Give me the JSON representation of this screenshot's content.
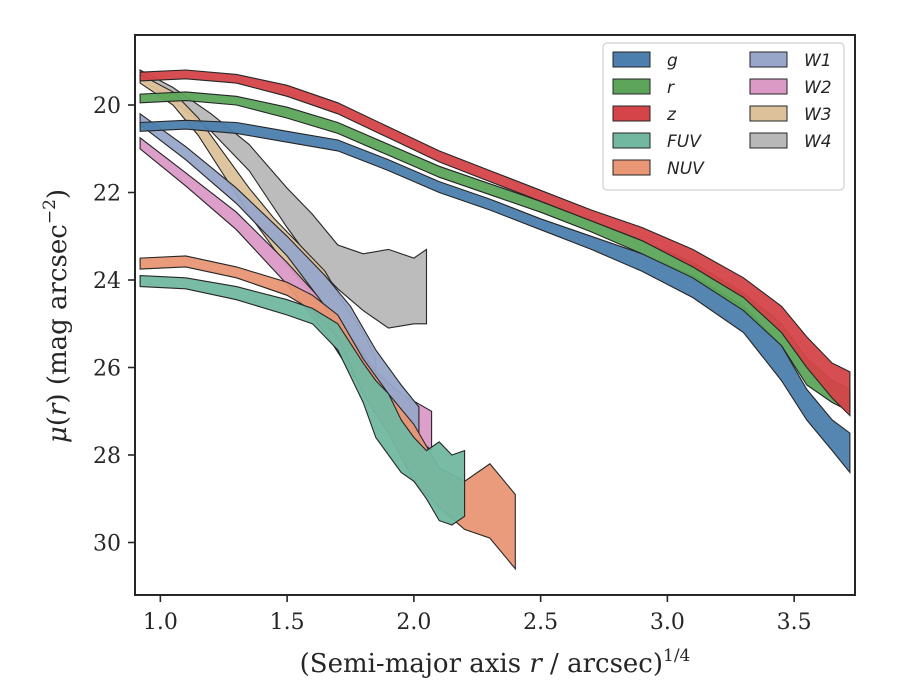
{
  "chart_data": {
    "type": "area",
    "xlabel": "(Semi-major axis r / arcsec)^{1/4}",
    "ylabel": "μ(r) (mag arcsec^{−2})",
    "xlim": [
      0.9,
      3.74
    ],
    "ylim": [
      31.2,
      18.4
    ],
    "y_inverted": true,
    "x_ticks": [
      "1.0",
      "1.5",
      "2.0",
      "2.5",
      "3.0",
      "3.5"
    ],
    "y_ticks": [
      "20",
      "22",
      "24",
      "26",
      "28",
      "30"
    ],
    "grid": false,
    "legend_position": "top-right",
    "legend_columns": 2,
    "series": [
      {
        "name": "g",
        "color": "#4c7fae",
        "x": [
          0.92,
          1.1,
          1.3,
          1.5,
          1.7,
          1.9,
          2.1,
          2.3,
          2.5,
          2.7,
          2.9,
          3.1,
          3.3,
          3.45,
          3.55,
          3.65,
          3.72
        ],
        "lower": [
          20.4,
          20.35,
          20.4,
          20.6,
          20.8,
          21.25,
          21.75,
          22.15,
          22.6,
          23.0,
          23.4,
          23.9,
          24.6,
          25.5,
          26.5,
          27.2,
          27.5
        ],
        "upper": [
          20.6,
          20.55,
          20.65,
          20.85,
          21.05,
          21.5,
          22.0,
          22.4,
          22.85,
          23.3,
          23.8,
          24.4,
          25.2,
          26.3,
          27.2,
          27.9,
          28.4
        ]
      },
      {
        "name": "r",
        "color": "#5ca55a",
        "x": [
          0.92,
          1.1,
          1.3,
          1.5,
          1.7,
          1.9,
          2.1,
          2.3,
          2.5,
          2.7,
          2.9,
          3.1,
          3.3,
          3.45,
          3.55,
          3.65,
          3.72
        ],
        "lower": [
          19.75,
          19.7,
          19.8,
          20.05,
          20.4,
          20.9,
          21.4,
          21.8,
          22.2,
          22.65,
          23.1,
          23.6,
          24.3,
          25.0,
          25.8,
          26.3,
          26.5
        ],
        "upper": [
          19.95,
          19.9,
          20.0,
          20.3,
          20.65,
          21.15,
          21.65,
          22.05,
          22.45,
          22.9,
          23.4,
          23.95,
          24.7,
          25.5,
          26.4,
          26.8,
          27.0
        ]
      },
      {
        "name": "z",
        "color": "#d44448",
        "x": [
          0.92,
          1.1,
          1.3,
          1.5,
          1.7,
          1.9,
          2.1,
          2.3,
          2.5,
          2.7,
          2.9,
          3.1,
          3.3,
          3.45,
          3.55,
          3.65,
          3.72
        ],
        "lower": [
          19.25,
          19.2,
          19.3,
          19.55,
          19.95,
          20.5,
          21.05,
          21.5,
          21.95,
          22.4,
          22.8,
          23.3,
          23.95,
          24.6,
          25.3,
          25.9,
          26.1
        ],
        "upper": [
          19.45,
          19.4,
          19.5,
          19.8,
          20.2,
          20.75,
          21.3,
          21.75,
          22.2,
          22.65,
          23.1,
          23.7,
          24.4,
          25.2,
          26.0,
          26.7,
          27.1
        ]
      },
      {
        "name": "FUV",
        "color": "#72b8a1",
        "x": [
          0.92,
          1.1,
          1.3,
          1.5,
          1.6,
          1.7,
          1.8,
          1.85,
          1.9,
          1.95,
          2.0,
          2.05,
          2.1,
          2.15,
          2.2
        ],
        "lower": [
          23.9,
          23.95,
          24.15,
          24.45,
          24.65,
          25.0,
          25.9,
          26.3,
          26.6,
          27.2,
          27.6,
          27.9,
          27.7,
          28.0,
          27.9
        ],
        "upper": [
          24.15,
          24.2,
          24.45,
          24.8,
          25.0,
          25.6,
          26.8,
          27.6,
          28.0,
          28.4,
          28.6,
          29.0,
          29.5,
          29.6,
          29.4
        ]
      },
      {
        "name": "NUV",
        "color": "#e89674",
        "x": [
          0.92,
          1.1,
          1.3,
          1.5,
          1.6,
          1.7,
          1.8,
          1.9,
          2.0,
          2.1,
          2.2,
          2.3,
          2.4
        ],
        "lower": [
          23.5,
          23.45,
          23.7,
          24.05,
          24.35,
          24.8,
          25.8,
          26.6,
          27.3,
          28.3,
          28.6,
          28.2,
          28.9
        ],
        "upper": [
          23.75,
          23.7,
          23.95,
          24.35,
          24.7,
          25.3,
          26.6,
          27.5,
          28.6,
          29.2,
          29.7,
          29.9,
          30.6
        ]
      },
      {
        "name": "W1",
        "color": "#97a6c9",
        "x": [
          0.92,
          1.1,
          1.3,
          1.5,
          1.65,
          1.75,
          1.85,
          1.95,
          2.02
        ],
        "lower": [
          20.2,
          20.95,
          21.9,
          23.0,
          23.9,
          24.6,
          25.6,
          26.4,
          26.9
        ],
        "upper": [
          20.45,
          21.25,
          22.25,
          23.45,
          24.6,
          25.8,
          26.7,
          27.4,
          27.7
        ]
      },
      {
        "name": "W2",
        "color": "#db9ac6",
        "x": [
          0.92,
          1.1,
          1.3,
          1.5,
          1.65,
          1.75,
          1.85,
          1.95,
          2.07
        ],
        "lower": [
          20.75,
          21.55,
          22.45,
          23.6,
          24.55,
          25.3,
          26.1,
          26.6,
          27.0
        ],
        "upper": [
          21.0,
          21.85,
          22.85,
          24.1,
          25.2,
          26.1,
          26.8,
          27.3,
          27.9
        ]
      },
      {
        "name": "W3",
        "color": "#ddc19b",
        "x": [
          0.92,
          1.05,
          1.15,
          1.25,
          1.35,
          1.45,
          1.55,
          1.65,
          1.72,
          1.8,
          1.85
        ],
        "lower": [
          19.3,
          19.7,
          20.3,
          21.1,
          21.9,
          22.6,
          23.2,
          23.8,
          24.5,
          25.2,
          25.8
        ],
        "upper": [
          19.5,
          20.0,
          20.7,
          21.6,
          22.5,
          23.3,
          24.0,
          24.7,
          25.5,
          26.2,
          26.6
        ]
      },
      {
        "name": "W4",
        "color": "#b8b8b8",
        "x": [
          0.92,
          1.05,
          1.2,
          1.35,
          1.5,
          1.6,
          1.7,
          1.8,
          1.9,
          2.0,
          2.05
        ],
        "lower": [
          19.2,
          19.6,
          20.2,
          20.9,
          21.9,
          22.5,
          23.2,
          23.4,
          23.3,
          23.5,
          23.3
        ],
        "upper": [
          19.4,
          19.9,
          20.6,
          21.5,
          22.8,
          23.6,
          24.2,
          24.7,
          25.1,
          25.0,
          25.0
        ]
      }
    ]
  }
}
